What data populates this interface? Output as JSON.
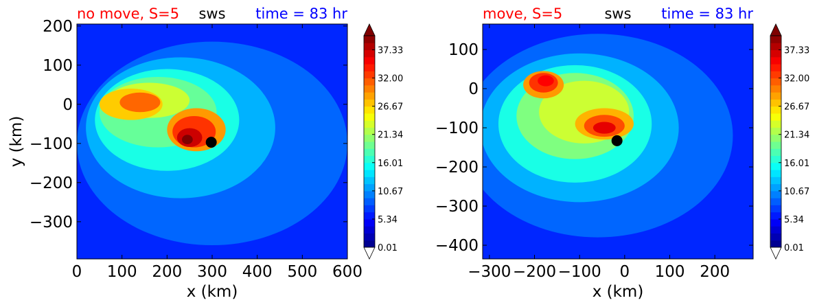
{
  "chart_data": [
    {
      "type": "heatmap",
      "title_left": "no move, S=5",
      "title_center": "sws",
      "title_right": "time = 83 hr",
      "xlabel": "x (km)",
      "ylabel": "y (km)",
      "xlim": [
        0,
        600
      ],
      "ylim": [
        -395,
        205
      ],
      "xticks": [
        0,
        100,
        200,
        300,
        400,
        500,
        600
      ],
      "yticks": [
        200,
        100,
        0,
        -100,
        -200,
        -300
      ],
      "marker": {
        "x": 298,
        "y": -97,
        "color": "#000000"
      },
      "features": [
        {
          "x": 300,
          "y": -100,
          "rx": 300,
          "ry": 260,
          "value": 9
        },
        {
          "x": 230,
          "y": -60,
          "rx": 210,
          "ry": 180,
          "value": 12
        },
        {
          "x": 200,
          "y": -40,
          "rx": 160,
          "ry": 130,
          "value": 16
        },
        {
          "x": 180,
          "y": -20,
          "rx": 130,
          "ry": 90,
          "value": 19
        },
        {
          "x": 160,
          "y": 10,
          "rx": 90,
          "ry": 45,
          "value": 23
        },
        {
          "x": 120,
          "y": 0,
          "rx": 70,
          "ry": 40,
          "value": 27
        },
        {
          "x": 140,
          "y": 5,
          "rx": 45,
          "ry": 25,
          "value": 31
        },
        {
          "x": 265,
          "y": -65,
          "rx": 65,
          "ry": 55,
          "value": 29
        },
        {
          "x": 260,
          "y": -70,
          "rx": 48,
          "ry": 40,
          "value": 33
        },
        {
          "x": 250,
          "y": -85,
          "rx": 28,
          "ry": 24,
          "value": 37
        },
        {
          "x": 245,
          "y": -90,
          "rx": 12,
          "ry": 12,
          "value": 40
        }
      ],
      "colorbar": {
        "ticks": [
          "0.01",
          "5.34",
          "10.67",
          "16.01",
          "21.34",
          "26.67",
          "32.00",
          "37.33"
        ],
        "min": 0.01,
        "max": 40,
        "extend": "both"
      }
    },
    {
      "type": "heatmap",
      "title_left": "move, S=5",
      "title_center": "sws",
      "title_right": "time = 83 hr",
      "xlabel": "x (km)",
      "ylabel": "",
      "xlim": [
        -315,
        285
      ],
      "ylim": [
        -435,
        165
      ],
      "xticks": [
        -300,
        -200,
        -100,
        0,
        100,
        200
      ],
      "yticks": [
        100,
        0,
        -100,
        -200,
        -300,
        -400
      ],
      "marker": {
        "x": -17,
        "y": -133,
        "color": "#000000"
      },
      "features": [
        {
          "x": -60,
          "y": -120,
          "rx": 300,
          "ry": 260,
          "value": 9
        },
        {
          "x": -100,
          "y": -100,
          "rx": 220,
          "ry": 190,
          "value": 12
        },
        {
          "x": -110,
          "y": -90,
          "rx": 170,
          "ry": 150,
          "value": 16
        },
        {
          "x": -110,
          "y": -70,
          "rx": 130,
          "ry": 110,
          "value": 20
        },
        {
          "x": -90,
          "y": -60,
          "rx": 100,
          "ry": 80,
          "value": 23
        },
        {
          "x": -180,
          "y": 10,
          "rx": 45,
          "ry": 35,
          "value": 29
        },
        {
          "x": -180,
          "y": 15,
          "rx": 32,
          "ry": 25,
          "value": 33
        },
        {
          "x": -175,
          "y": 20,
          "rx": 18,
          "ry": 14,
          "value": 35
        },
        {
          "x": -45,
          "y": -90,
          "rx": 65,
          "ry": 40,
          "value": 28
        },
        {
          "x": -45,
          "y": -95,
          "rx": 45,
          "ry": 28,
          "value": 32
        },
        {
          "x": -45,
          "y": -100,
          "rx": 25,
          "ry": 15,
          "value": 36
        }
      ],
      "colorbar": {
        "ticks": [
          "0.01",
          "5.34",
          "10.67",
          "16.01",
          "21.34",
          "26.67",
          "32.00",
          "37.33"
        ],
        "min": 0.01,
        "max": 40,
        "extend": "both"
      }
    }
  ]
}
